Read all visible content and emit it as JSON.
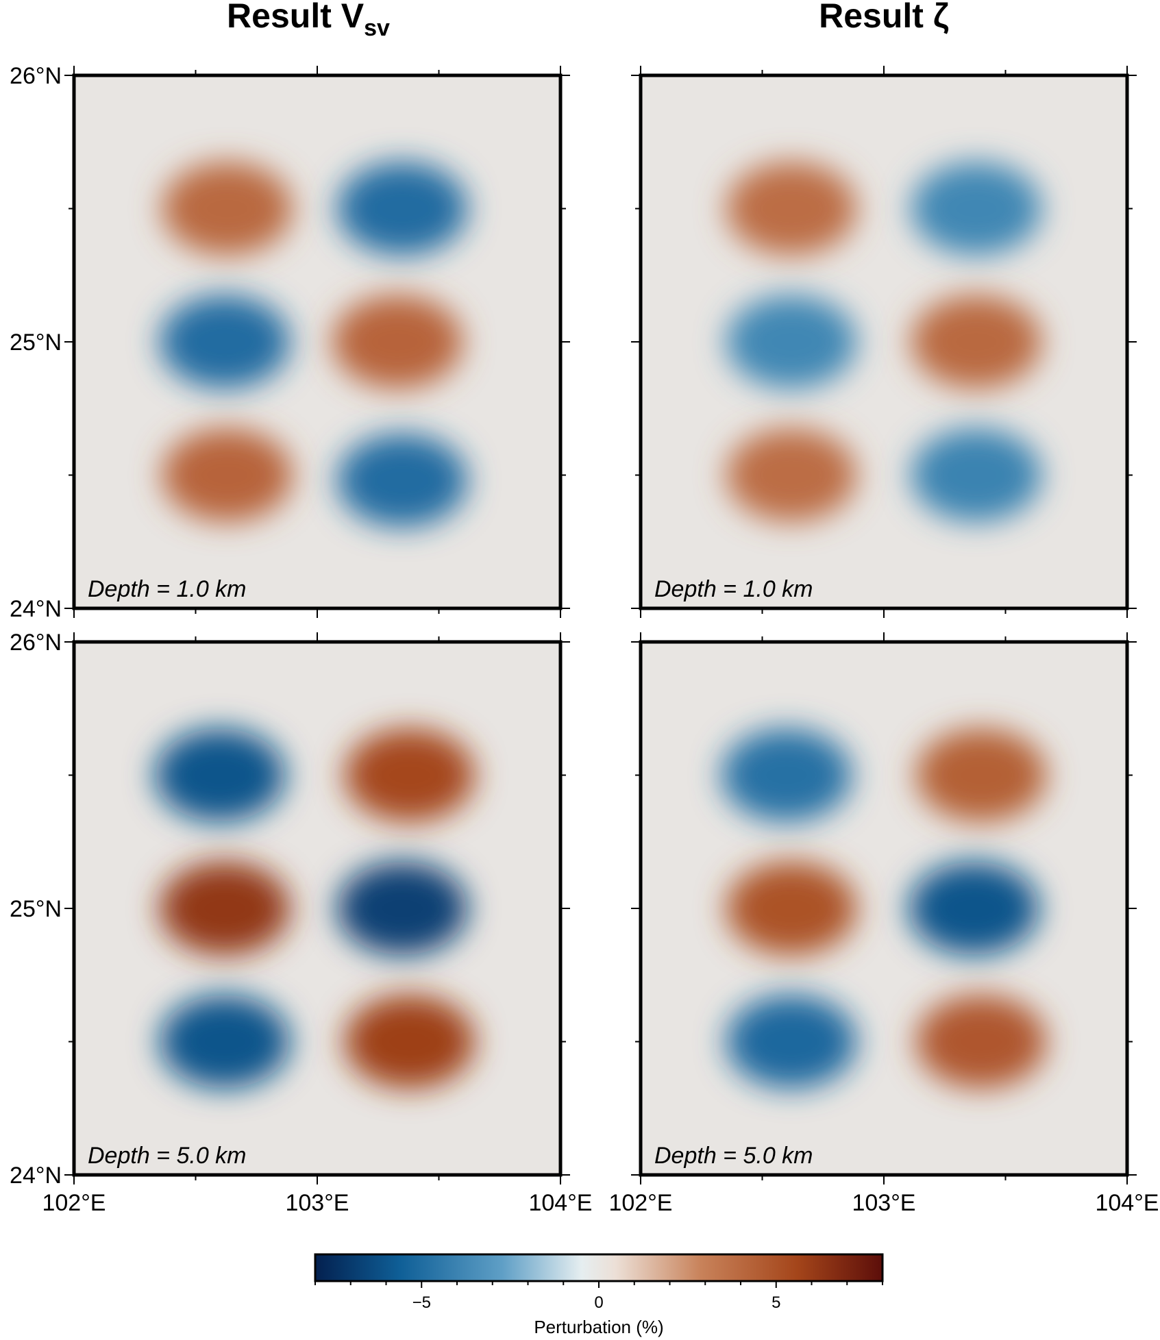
{
  "chart_data": [
    {
      "type": "heatmap",
      "title": "Result Vsv",
      "title_main": "Result V",
      "title_sub": "sv",
      "annotation": "Depth = 1.0 km",
      "depth_km": 1.0,
      "x_range": [
        102,
        104
      ],
      "y_range": [
        24,
        26
      ],
      "x_ticks": [],
      "x_tick_labels": [],
      "y_ticks": [
        24,
        25,
        26
      ],
      "y_tick_labels": [
        "24°N",
        "25°N",
        "26°N"
      ],
      "unit": "%",
      "anomalies": [
        {
          "lon": 102.63,
          "lat": 25.5,
          "value": 4.0
        },
        {
          "lon": 103.35,
          "lat": 25.5,
          "value": -5.0
        },
        {
          "lon": 102.62,
          "lat": 25.0,
          "value": -5.0
        },
        {
          "lon": 103.33,
          "lat": 25.0,
          "value": 4.2
        },
        {
          "lon": 102.63,
          "lat": 24.5,
          "value": 4.2
        },
        {
          "lon": 103.35,
          "lat": 24.48,
          "value": -5.0
        }
      ]
    },
    {
      "type": "heatmap",
      "title": "Result ζ",
      "title_main": "Result ζ",
      "title_sub": "",
      "annotation": "Depth = 1.0 km",
      "depth_km": 1.0,
      "x_range": [
        102,
        104
      ],
      "y_range": [
        24,
        26
      ],
      "x_ticks": [],
      "x_tick_labels": [],
      "y_ticks": [
        24,
        25,
        26
      ],
      "y_tick_labels": [],
      "unit": "%",
      "anomalies": [
        {
          "lon": 102.62,
          "lat": 25.5,
          "value": 3.8
        },
        {
          "lon": 103.38,
          "lat": 25.5,
          "value": -3.8
        },
        {
          "lon": 102.62,
          "lat": 25.0,
          "value": -3.8
        },
        {
          "lon": 103.38,
          "lat": 25.0,
          "value": 4.0
        },
        {
          "lon": 102.62,
          "lat": 24.5,
          "value": 3.8
        },
        {
          "lon": 103.38,
          "lat": 24.5,
          "value": -4.0
        }
      ]
    },
    {
      "type": "heatmap",
      "title": "",
      "annotation": "Depth = 5.0 km",
      "depth_km": 5.0,
      "x_range": [
        102,
        104
      ],
      "y_range": [
        24,
        26
      ],
      "x_ticks": [
        102,
        103,
        104
      ],
      "x_tick_labels": [
        "102°E",
        "103°E",
        "104°E"
      ],
      "y_ticks": [
        24,
        25,
        26
      ],
      "y_tick_labels": [
        "24°N",
        "25°N",
        "26°N"
      ],
      "unit": "%",
      "anomalies": [
        {
          "lon": 102.6,
          "lat": 25.5,
          "value": -6.0
        },
        {
          "lon": 103.38,
          "lat": 25.5,
          "value": 5.5
        },
        {
          "lon": 102.62,
          "lat": 25.0,
          "value": 6.2
        },
        {
          "lon": 103.35,
          "lat": 25.0,
          "value": -6.8
        },
        {
          "lon": 102.62,
          "lat": 24.5,
          "value": -6.0
        },
        {
          "lon": 103.38,
          "lat": 24.5,
          "value": 5.8
        }
      ]
    },
    {
      "type": "heatmap",
      "title": "",
      "annotation": "Depth = 5.0 km",
      "depth_km": 5.0,
      "x_range": [
        102,
        104
      ],
      "y_range": [
        24,
        26
      ],
      "x_ticks": [
        102,
        103,
        104
      ],
      "x_tick_labels": [
        "102°E",
        "103°E",
        "104°E"
      ],
      "y_ticks": [
        24,
        25,
        26
      ],
      "y_tick_labels": [],
      "unit": "%",
      "anomalies": [
        {
          "lon": 102.6,
          "lat": 25.5,
          "value": -4.8
        },
        {
          "lon": 103.4,
          "lat": 25.5,
          "value": 4.4
        },
        {
          "lon": 102.62,
          "lat": 25.0,
          "value": 5.0
        },
        {
          "lon": 103.37,
          "lat": 25.0,
          "value": -6.0
        },
        {
          "lon": 102.62,
          "lat": 24.5,
          "value": -5.2
        },
        {
          "lon": 103.4,
          "lat": 24.5,
          "value": 4.8
        }
      ]
    }
  ],
  "colorbar": {
    "title": "Perturbation (%)",
    "range": [
      -8,
      8
    ],
    "ticks": [
      -5,
      0,
      5
    ],
    "tick_labels": [
      "−5",
      "0",
      "5"
    ],
    "colors": [
      "#03204f",
      "#0f5f97",
      "#5f9fc6",
      "#e6eef0",
      "#ecdfd6",
      "#c8825a",
      "#a4451a",
      "#5c0e0a"
    ]
  }
}
